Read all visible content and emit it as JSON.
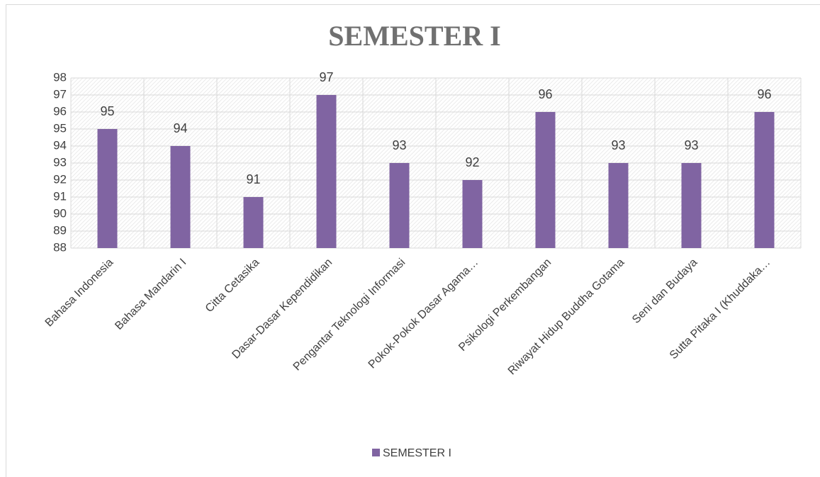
{
  "chart_data": {
    "type": "bar",
    "title": "SEMESTER I",
    "categories": [
      "Bahasa Indonesia",
      "Bahasa Mandarin I",
      "Citta Cetasika",
      "Dasar-Dasar Kependidikan",
      "Pengantar Teknologi Informasi",
      "Pokok-Pokok Dasar Agama…",
      "Psikologi Perkembangan",
      "Riwayat Hidup Buddha Gotama",
      "Seni dan Budaya",
      "Sutta Pitaka I (Khuddaka…"
    ],
    "series": [
      {
        "name": "SEMESTER I",
        "color": "#8064a2",
        "values": [
          95,
          94,
          91,
          97,
          93,
          92,
          96,
          93,
          93,
          96
        ]
      }
    ],
    "ylim": [
      88,
      98
    ],
    "yticks": [
      88,
      89,
      90,
      91,
      92,
      93,
      94,
      95,
      96,
      97,
      98
    ],
    "grid": true,
    "legend": "bottom"
  }
}
